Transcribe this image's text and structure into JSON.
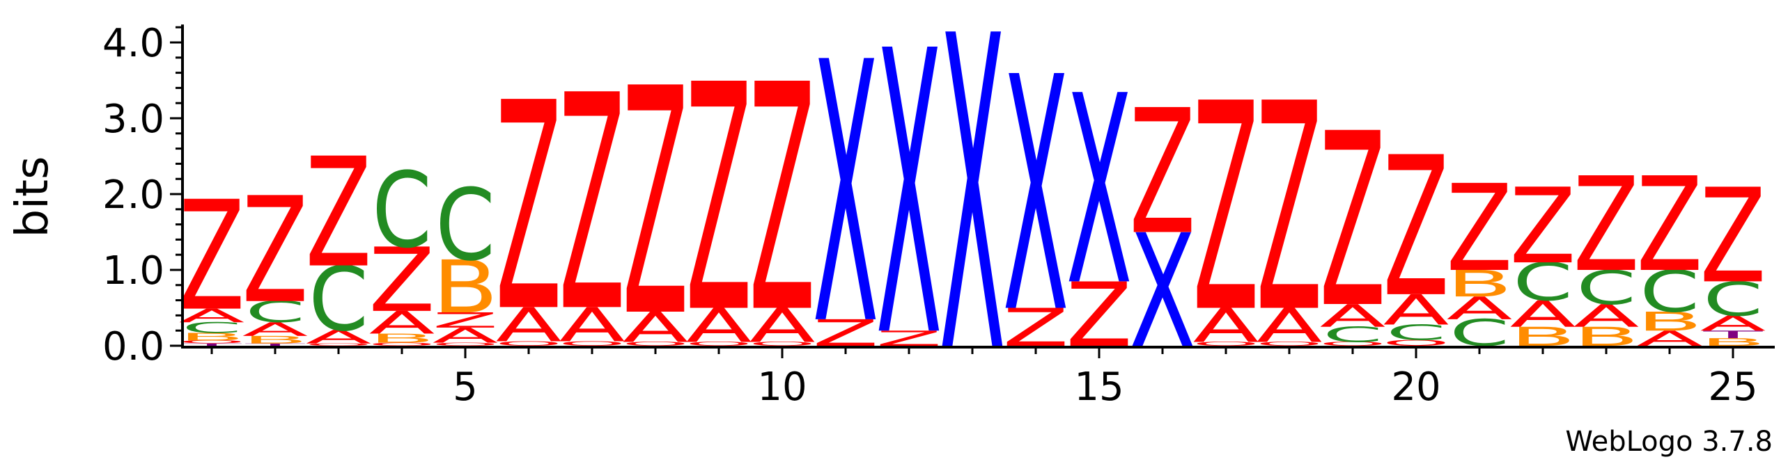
{
  "chart_data": {
    "type": "sequence-logo",
    "ylabel": "bits",
    "ylim": [
      0,
      4.2
    ],
    "y_ticks": [
      "0.0",
      "1.0",
      "2.0",
      "3.0",
      "4.0"
    ],
    "y_tick_values": [
      0,
      1,
      2,
      3,
      4
    ],
    "x_ticks": [
      "5",
      "10",
      "15",
      "20",
      "25"
    ],
    "x_tick_values": [
      5,
      10,
      15,
      20,
      25
    ],
    "positions": 25,
    "footer": "WebLogo 3.7.8",
    "colors": {
      "Z": "#ff0000",
      "A": "#ff0000",
      "C": "#228b22",
      "B": "#ff8c00",
      "X": "#0000ff",
      "T": "#800080",
      "O": "#ff0000"
    },
    "columns": [
      {
        "position": 1,
        "stack": [
          [
            "T",
            0.03
          ],
          [
            "O",
            0.04
          ],
          [
            "B",
            0.1
          ],
          [
            "C",
            0.14
          ],
          [
            "A",
            0.18
          ],
          [
            "Z",
            1.45
          ]
        ]
      },
      {
        "position": 2,
        "stack": [
          [
            "T",
            0.03
          ],
          [
            "B",
            0.1
          ],
          [
            "A",
            0.18
          ],
          [
            "C",
            0.28
          ],
          [
            "Z",
            1.4
          ]
        ]
      },
      {
        "position": 3,
        "stack": [
          [
            "O",
            0.03
          ],
          [
            "A",
            0.18
          ],
          [
            "C",
            0.85
          ],
          [
            "Z",
            1.45
          ]
        ]
      },
      {
        "position": 4,
        "stack": [
          [
            "O",
            0.04
          ],
          [
            "B",
            0.12
          ],
          [
            "A",
            0.3
          ],
          [
            "Z",
            0.85
          ],
          [
            "C",
            1.0
          ]
        ]
      },
      {
        "position": 5,
        "stack": [
          [
            "O",
            0.04
          ],
          [
            "A",
            0.2
          ],
          [
            "Z",
            0.2
          ],
          [
            "B",
            0.7
          ],
          [
            "C",
            0.95
          ]
        ]
      },
      {
        "position": 6,
        "stack": [
          [
            "O",
            0.06
          ],
          [
            "A",
            0.45
          ],
          [
            "Z",
            2.75
          ]
        ]
      },
      {
        "position": 7,
        "stack": [
          [
            "O",
            0.06
          ],
          [
            "A",
            0.45
          ],
          [
            "Z",
            2.85
          ]
        ]
      },
      {
        "position": 8,
        "stack": [
          [
            "O",
            0.05
          ],
          [
            "A",
            0.4
          ],
          [
            "Z",
            3.0
          ]
        ]
      },
      {
        "position": 9,
        "stack": [
          [
            "O",
            0.05
          ],
          [
            "A",
            0.45
          ],
          [
            "Z",
            3.0
          ]
        ]
      },
      {
        "position": 10,
        "stack": [
          [
            "O",
            0.05
          ],
          [
            "A",
            0.45
          ],
          [
            "Z",
            3.0
          ]
        ]
      },
      {
        "position": 11,
        "stack": [
          [
            "Z",
            0.35
          ],
          [
            "X",
            3.45
          ]
        ]
      },
      {
        "position": 12,
        "stack": [
          [
            "Z",
            0.2
          ],
          [
            "X",
            3.75
          ]
        ]
      },
      {
        "position": 13,
        "stack": [
          [
            "X",
            4.15
          ]
        ]
      },
      {
        "position": 14,
        "stack": [
          [
            "Z",
            0.5
          ],
          [
            "X",
            3.1
          ]
        ]
      },
      {
        "position": 15,
        "stack": [
          [
            "Z",
            0.85
          ],
          [
            "X",
            2.5
          ]
        ]
      },
      {
        "position": 16,
        "stack": [
          [
            "X",
            1.5
          ],
          [
            "Z",
            1.65
          ]
        ]
      },
      {
        "position": 17,
        "stack": [
          [
            "O",
            0.05
          ],
          [
            "A",
            0.45
          ],
          [
            "Z",
            2.75
          ]
        ]
      },
      {
        "position": 18,
        "stack": [
          [
            "O",
            0.05
          ],
          [
            "A",
            0.45
          ],
          [
            "Z",
            2.75
          ]
        ]
      },
      {
        "position": 19,
        "stack": [
          [
            "O",
            0.05
          ],
          [
            "C",
            0.2
          ],
          [
            "A",
            0.3
          ],
          [
            "Z",
            2.3
          ]
        ]
      },
      {
        "position": 20,
        "stack": [
          [
            "O",
            0.08
          ],
          [
            "C",
            0.2
          ],
          [
            "A",
            0.4
          ],
          [
            "Z",
            1.85
          ]
        ]
      },
      {
        "position": 21,
        "stack": [
          [
            "C",
            0.35
          ],
          [
            "A",
            0.3
          ],
          [
            "B",
            0.35
          ],
          [
            "Z",
            1.15
          ]
        ]
      },
      {
        "position": 22,
        "stack": [
          [
            "B",
            0.25
          ],
          [
            "A",
            0.35
          ],
          [
            "C",
            0.5
          ],
          [
            "Z",
            1.0
          ]
        ]
      },
      {
        "position": 23,
        "stack": [
          [
            "B",
            0.25
          ],
          [
            "A",
            0.3
          ],
          [
            "C",
            0.45
          ],
          [
            "Z",
            1.25
          ]
        ]
      },
      {
        "position": 24,
        "stack": [
          [
            "A",
            0.2
          ],
          [
            "B",
            0.25
          ],
          [
            "C",
            0.55
          ],
          [
            "Z",
            1.25
          ]
        ]
      },
      {
        "position": 25,
        "stack": [
          [
            "B",
            0.1
          ],
          [
            "T",
            0.1
          ],
          [
            "A",
            0.2
          ],
          [
            "C",
            0.45
          ],
          [
            "Z",
            1.25
          ]
        ]
      }
    ]
  }
}
